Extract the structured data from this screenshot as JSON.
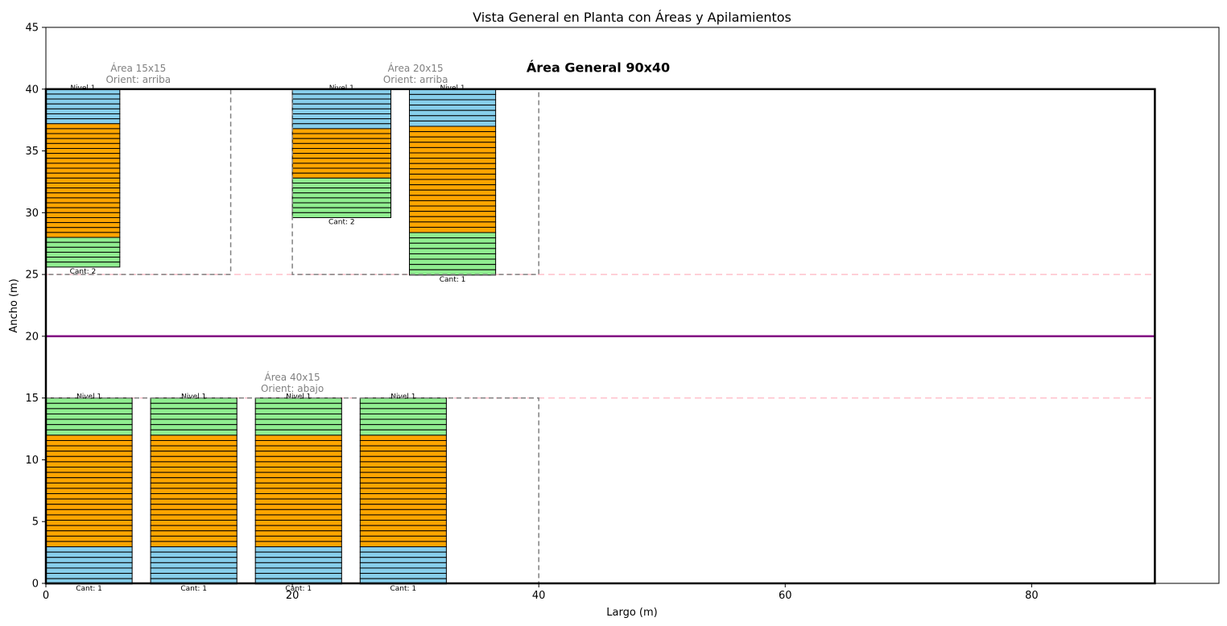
{
  "chart_data": {
    "type": "bar",
    "title": "Vista General en Planta con Áreas y Apilamientos",
    "xlabel": "Largo (m)",
    "ylabel": "Ancho (m)",
    "xlim": [
      0,
      95.2
    ],
    "ylim": [
      0,
      45
    ],
    "xticks": [
      0,
      20,
      40,
      60,
      80
    ],
    "yticks": [
      0,
      5,
      10,
      15,
      20,
      25,
      30,
      35,
      40,
      45
    ],
    "grid": false,
    "general_area": {
      "label": "Área General 90x40",
      "x": [
        0,
        90
      ],
      "y": [
        0,
        40
      ],
      "label_pos": [
        39,
        41.4
      ],
      "color": "#000000"
    },
    "center_line": {
      "y": 20,
      "color": "#800080"
    },
    "pink_lines": {
      "y": [
        15,
        25
      ],
      "color": "#ffc0cb"
    },
    "areas": [
      {
        "label": "Área 15x15",
        "orient": "Orient: arriba",
        "x0": 0,
        "x1": 15,
        "y0": 25,
        "y1": 40,
        "label_x": 7.5,
        "label_y": 40.5
      },
      {
        "label": "Área 20x15",
        "orient": "Orient: arriba",
        "x0": 20,
        "x1": 40,
        "y0": 25,
        "y1": 40,
        "label_x": 30,
        "label_y": 40.5
      },
      {
        "label": "Área 40x15",
        "orient": "Orient: abajo",
        "x0": 0,
        "x1": 40,
        "y0": 0,
        "y1": 15,
        "label_x": 20,
        "label_y": 15.5
      }
    ],
    "series_colors": {
      "blue": "#87ceeb",
      "orange": "#ffa500",
      "green": "#90ee90"
    },
    "stacks": [
      {
        "x0": 0,
        "x1": 6,
        "top": 40,
        "direction": "down",
        "layers": [
          {
            "color": "blue",
            "count": 7,
            "height": 0.4
          },
          {
            "color": "orange",
            "count": 23,
            "height": 0.4
          },
          {
            "color": "green",
            "count": 6,
            "height": 0.4
          }
        ],
        "label_x": 3,
        "top_label": "Nivel 1",
        "bottom_label": "Cant: 2"
      },
      {
        "x0": 20,
        "x1": 28,
        "top": 40,
        "direction": "down",
        "layers": [
          {
            "color": "blue",
            "count": 8,
            "height": 0.4
          },
          {
            "color": "orange",
            "count": 10,
            "height": 0.4
          },
          {
            "color": "green",
            "count": 8,
            "height": 0.4
          }
        ],
        "label_x": 24,
        "top_label": "Nivel 1",
        "bottom_label": "Cant: 2"
      },
      {
        "x0": 29.5,
        "x1": 36.5,
        "top": 40,
        "direction": "down",
        "layers": [
          {
            "color": "blue",
            "count": 7,
            "height": 0.43
          },
          {
            "color": "orange",
            "count": 20,
            "height": 0.43
          },
          {
            "color": "green",
            "count": 8,
            "height": 0.43
          }
        ],
        "label_x": 33,
        "top_label": "Nivel 1",
        "bottom_label": "Cant: 1"
      },
      {
        "x0": 0,
        "x1": 7,
        "top": 15,
        "direction": "down",
        "layers": [
          {
            "color": "green",
            "count": 7,
            "height": 0.43
          },
          {
            "color": "orange",
            "count": 21,
            "height": 0.43
          },
          {
            "color": "blue",
            "count": 7,
            "height": 0.43
          }
        ],
        "label_x": 3.5,
        "top_label": "Nivel 1",
        "bottom_label": "Cant: 1"
      },
      {
        "x0": 8.5,
        "x1": 15.5,
        "top": 15,
        "direction": "down",
        "layers": [
          {
            "color": "green",
            "count": 7,
            "height": 0.43
          },
          {
            "color": "orange",
            "count": 21,
            "height": 0.43
          },
          {
            "color": "blue",
            "count": 7,
            "height": 0.43
          }
        ],
        "label_x": 12,
        "top_label": "Nivel 1",
        "bottom_label": "Cant: 1"
      },
      {
        "x0": 17,
        "x1": 24,
        "top": 15,
        "direction": "down",
        "layers": [
          {
            "color": "green",
            "count": 7,
            "height": 0.43
          },
          {
            "color": "orange",
            "count": 21,
            "height": 0.43
          },
          {
            "color": "blue",
            "count": 7,
            "height": 0.43
          }
        ],
        "label_x": 20.5,
        "top_label": "Nivel 1",
        "bottom_label": "Cant: 1"
      },
      {
        "x0": 25.5,
        "x1": 32.5,
        "top": 15,
        "direction": "down",
        "layers": [
          {
            "color": "green",
            "count": 7,
            "height": 0.43
          },
          {
            "color": "orange",
            "count": 21,
            "height": 0.43
          },
          {
            "color": "blue",
            "count": 7,
            "height": 0.43
          }
        ],
        "label_x": 29,
        "top_label": "Nivel 1",
        "bottom_label": "Cant: 1"
      }
    ]
  }
}
